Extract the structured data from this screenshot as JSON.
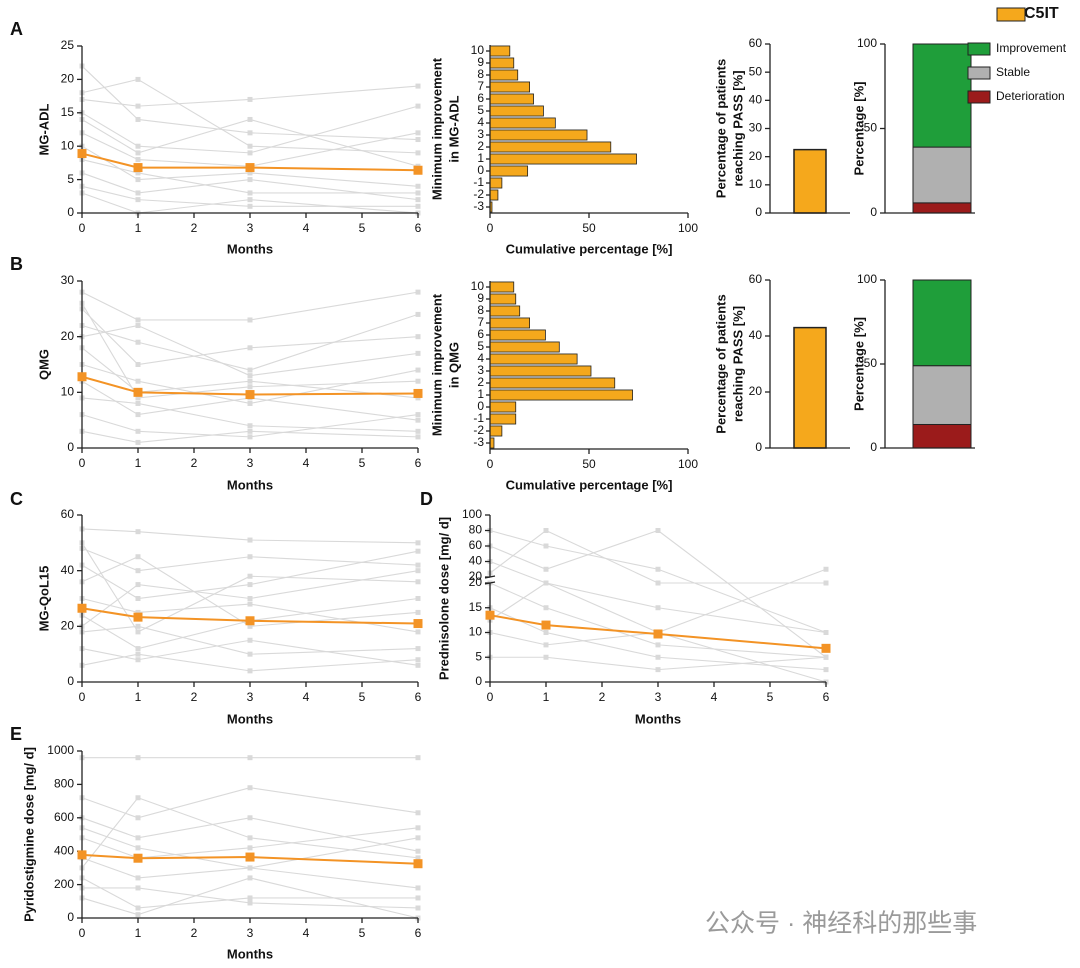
{
  "legend": {
    "label": "C5IT",
    "color": "#f5a81c"
  },
  "watermark": "公众号 · 神经科的那些事",
  "chart_data": [
    {
      "type": "line",
      "panel": "A",
      "ylabel": "MG-ADL",
      "xlabel": "Months",
      "x": [
        0,
        1,
        3,
        6
      ],
      "values": [
        8.9,
        6.8,
        6.8,
        6.4
      ],
      "color": "#f39325",
      "xlim": [
        0,
        6
      ],
      "xticks": [
        0,
        1,
        2,
        3,
        4,
        5,
        6
      ],
      "ylim": [
        0,
        25
      ],
      "yticks": [
        0,
        5,
        10,
        15,
        20,
        25
      ],
      "individual_color": "#d9d9d9",
      "individuals": [
        [
          22,
          14,
          12,
          11
        ],
        [
          18,
          20,
          10,
          9
        ],
        [
          15,
          10,
          9,
          16
        ],
        [
          12,
          8,
          7,
          12
        ],
        [
          10,
          5,
          6,
          4
        ],
        [
          8,
          6,
          3,
          3
        ],
        [
          6,
          3,
          5,
          2
        ],
        [
          4,
          2,
          1,
          1
        ],
        [
          3,
          0,
          2,
          0
        ],
        [
          17,
          16,
          17,
          19
        ],
        [
          14,
          9,
          14,
          7
        ]
      ]
    },
    {
      "type": "hbar",
      "ylabel": [
        "Minimum improvement",
        "in MG-ADL"
      ],
      "xlabel": "Cumulative percentage [%]",
      "categories": [
        "10",
        "9",
        "8",
        "7",
        "6",
        "5",
        "4",
        "3",
        "2",
        "1",
        "0",
        "-1",
        "-2",
        "-3"
      ],
      "values": [
        10,
        12,
        14,
        20,
        22,
        27,
        33,
        49,
        61,
        74,
        19,
        6,
        4,
        1
      ],
      "color": "#f5a81c",
      "xlim": [
        0,
        100
      ],
      "xticks": [
        0,
        50,
        100
      ]
    },
    {
      "type": "bar",
      "ylabel": [
        "Percentage of patients",
        "reaching PASS [%]"
      ],
      "values": [
        22.5
      ],
      "color": "#f5a81c",
      "ylim": [
        0,
        60
      ],
      "yticks": [
        0,
        10,
        20,
        30,
        40,
        50,
        60
      ]
    },
    {
      "type": "stacked_bar",
      "ylabel": "Percentage [%]",
      "legend": true,
      "ylim": [
        0,
        100
      ],
      "yticks": [
        0,
        50,
        100
      ],
      "series": [
        {
          "name": "Improvement",
          "color": "#1f9e3a",
          "values": [
            61
          ]
        },
        {
          "name": "Stable",
          "color": "#b0b0b0",
          "values": [
            33
          ]
        },
        {
          "name": "Deterioration",
          "color": "#9b1b1b",
          "values": [
            6
          ]
        }
      ]
    },
    {
      "type": "line",
      "panel": "B",
      "ylabel": "QMG",
      "xlabel": "Months",
      "x": [
        0,
        1,
        3,
        6
      ],
      "values": [
        12.8,
        10,
        9.6,
        9.8
      ],
      "color": "#f39325",
      "xlim": [
        0,
        6
      ],
      "xticks": [
        0,
        1,
        2,
        3,
        4,
        5,
        6
      ],
      "ylim": [
        0,
        30
      ],
      "yticks": [
        0,
        10,
        20,
        30
      ],
      "individual_color": "#d9d9d9",
      "individuals": [
        [
          28,
          23,
          23,
          28
        ],
        [
          25,
          15,
          18,
          20
        ],
        [
          22,
          19,
          14,
          24
        ],
        [
          18,
          10,
          12,
          9
        ],
        [
          15,
          12,
          8,
          14
        ],
        [
          12,
          6,
          9,
          5
        ],
        [
          9,
          8,
          4,
          3
        ],
        [
          6,
          3,
          2,
          6
        ],
        [
          3,
          1,
          3,
          2
        ],
        [
          20,
          22,
          13,
          17
        ],
        [
          26,
          9,
          11,
          12
        ]
      ]
    },
    {
      "type": "hbar",
      "ylabel": [
        "Minimum improvement",
        "in QMG"
      ],
      "xlabel": "Cumulative percentage [%]",
      "categories": [
        "10",
        "9",
        "8",
        "7",
        "6",
        "5",
        "4",
        "3",
        "2",
        "1",
        "0",
        "-1",
        "-2",
        "-3"
      ],
      "values": [
        12,
        13,
        15,
        20,
        28,
        35,
        44,
        51,
        63,
        72,
        13,
        13,
        6,
        2
      ],
      "color": "#f5a81c",
      "xlim": [
        0,
        100
      ],
      "xticks": [
        0,
        50,
        100
      ]
    },
    {
      "type": "bar",
      "ylabel": [
        "Percentage of patients",
        "reaching PASS [%]"
      ],
      "values": [
        43
      ],
      "color": "#f5a81c",
      "ylim": [
        0,
        60
      ],
      "yticks": [
        0,
        20,
        40,
        60
      ]
    },
    {
      "type": "stacked_bar",
      "ylabel": "Percentage [%]",
      "ylim": [
        0,
        100
      ],
      "yticks": [
        0,
        50,
        100
      ],
      "series": [
        {
          "color": "#1f9e3a",
          "values": [
            51
          ]
        },
        {
          "color": "#b0b0b0",
          "values": [
            35
          ]
        },
        {
          "color": "#9b1b1b",
          "values": [
            14
          ]
        }
      ]
    },
    {
      "type": "line",
      "panel": "C",
      "ylabel": "MG-QoL15",
      "xlabel": "Months",
      "x": [
        0,
        1,
        3,
        6
      ],
      "values": [
        26.5,
        23.3,
        22,
        21
      ],
      "color": "#f39325",
      "xlim": [
        0,
        6
      ],
      "xticks": [
        0,
        1,
        2,
        3,
        4,
        5,
        6
      ],
      "ylim": [
        0,
        60
      ],
      "yticks": [
        0,
        20,
        40,
        60
      ],
      "individual_color": "#d9d9d9",
      "individuals": [
        [
          55,
          54,
          51,
          50
        ],
        [
          48,
          40,
          45,
          42
        ],
        [
          42,
          30,
          35,
          47
        ],
        [
          36,
          45,
          20,
          25
        ],
        [
          30,
          25,
          28,
          18
        ],
        [
          24,
          12,
          22,
          30
        ],
        [
          18,
          20,
          10,
          12
        ],
        [
          12,
          8,
          15,
          6
        ],
        [
          6,
          10,
          4,
          8
        ],
        [
          50,
          18,
          38,
          36
        ],
        [
          20,
          35,
          30,
          40
        ]
      ]
    },
    {
      "type": "line",
      "panel": "D",
      "ylabel": "Prednisolone dose [mg/ d]",
      "xlabel": "Months",
      "x": [
        0,
        1,
        3,
        6
      ],
      "values": [
        13.5,
        11.5,
        9.7,
        6.8
      ],
      "color": "#f39325",
      "xlim": [
        0,
        6
      ],
      "xticks": [
        0,
        1,
        2,
        3,
        4,
        5,
        6
      ],
      "ylim": [
        0,
        20
      ],
      "yticks": [
        0,
        5,
        10,
        15,
        20
      ],
      "ylim_upper": [
        20,
        100
      ],
      "yticks_upper": [
        20,
        40,
        60,
        80,
        100
      ],
      "individual_color": "#d9d9d9",
      "individuals": [
        [
          80,
          60,
          30,
          10
        ],
        [
          60,
          30,
          80,
          5
        ],
        [
          40,
          20,
          10,
          30
        ],
        [
          20,
          15,
          7.5,
          5
        ],
        [
          15,
          10,
          5,
          2.5
        ],
        [
          10,
          7.5,
          10,
          0
        ],
        [
          25,
          80,
          20,
          20
        ],
        [
          5,
          5,
          2.5,
          5
        ],
        [
          12.5,
          20,
          15,
          10
        ]
      ]
    },
    {
      "type": "line",
      "panel": "E",
      "ylabel": "Pyridostigmine dose [mg/ d]",
      "xlabel": "Months",
      "x": [
        0,
        1,
        3,
        6
      ],
      "values": [
        378,
        358,
        365,
        325
      ],
      "color": "#f39325",
      "xlim": [
        0,
        6
      ],
      "xticks": [
        0,
        1,
        2,
        3,
        4,
        5,
        6
      ],
      "ylim": [
        0,
        1000
      ],
      "yticks": [
        0,
        200,
        400,
        600,
        800,
        1000
      ],
      "individual_color": "#d9d9d9",
      "individuals": [
        [
          960,
          960,
          960,
          960
        ],
        [
          720,
          600,
          780,
          630
        ],
        [
          600,
          480,
          600,
          400
        ],
        [
          480,
          360,
          420,
          540
        ],
        [
          360,
          240,
          300,
          180
        ],
        [
          240,
          60,
          120,
          120
        ],
        [
          180,
          180,
          90,
          60
        ],
        [
          120,
          20,
          240,
          0
        ],
        [
          300,
          720,
          480,
          360
        ],
        [
          540,
          420,
          300,
          480
        ]
      ]
    }
  ]
}
